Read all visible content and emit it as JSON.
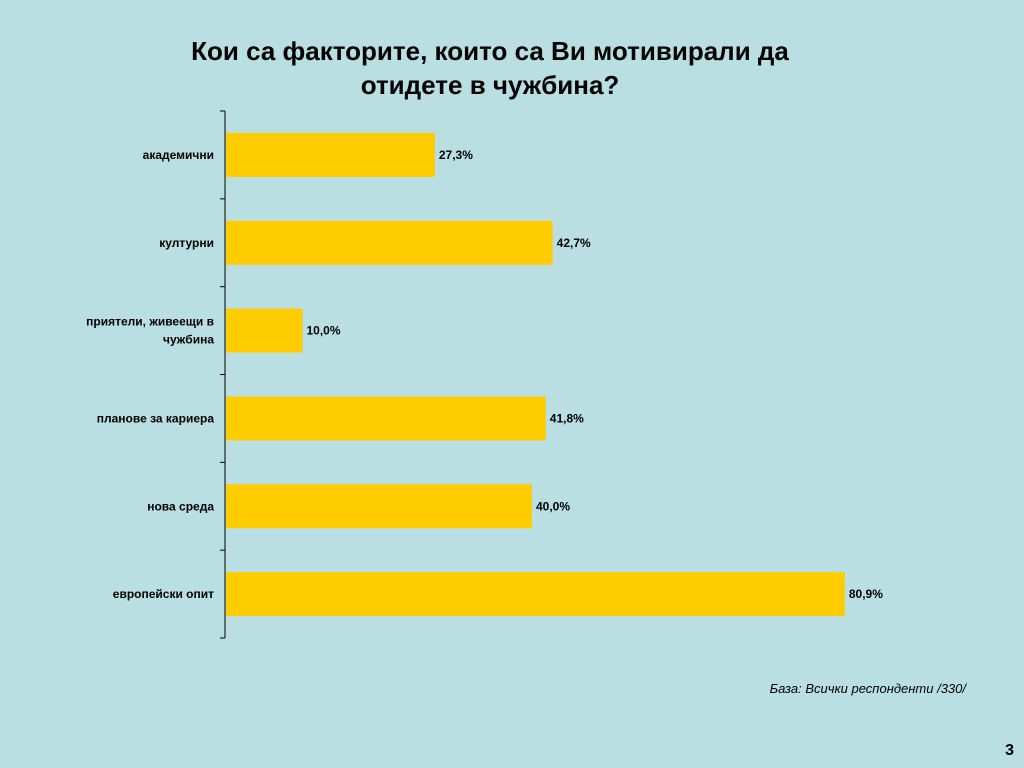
{
  "slide": {
    "title_line1": "Кои са факторите, които са Ви мотивирали да",
    "title_line2": "отидете в чужбина?",
    "footnote": "База: Всички респонденти /330/",
    "page_number": "3"
  },
  "colors": {
    "background": "#b9dfe2",
    "bar": "#ffcc00",
    "axis": "#000000"
  },
  "chart_data": {
    "type": "bar",
    "orientation": "horizontal",
    "title": "Кои са факторите, които са Ви мотивирали да отидете в чужбина?",
    "categories": [
      "академични",
      "културни",
      "приятели, живеещи в чужбина",
      "планове за кариера",
      "нова среда",
      "европейски опит"
    ],
    "values": [
      27.3,
      42.7,
      10.0,
      41.8,
      40.0,
      80.9
    ],
    "data_labels": [
      "27,3%",
      "42,7%",
      "10,0%",
      "41,8%",
      "40,0%",
      "80,9%"
    ],
    "unit": "%",
    "xlim": [
      0,
      100
    ],
    "grid": false,
    "legend": "none"
  }
}
